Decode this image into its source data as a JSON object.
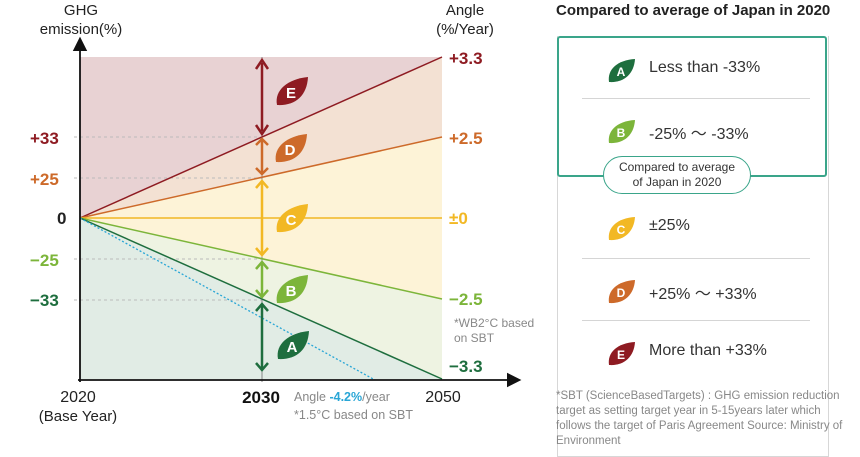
{
  "diagram": {
    "y_axis_title": [
      "GHG",
      "emission(%)"
    ],
    "right_axis_title": [
      "Angle",
      "(%/Year)"
    ],
    "left_ticks": [
      "+33",
      "+25",
      "0",
      "−25",
      "−33"
    ],
    "right_ticks": [
      "+3.3",
      "+2.5",
      "±0",
      "−2.5",
      "−3.3"
    ],
    "x_ticks": {
      "start": "2020",
      "start_sub": "(Base Year)",
      "mid": "2030",
      "end": "2050"
    },
    "zones": [
      "E",
      "D",
      "C",
      "B",
      "A"
    ],
    "wb2_note": [
      "*WB2°C based",
      "on SBT"
    ],
    "angle_note_prefix": "Angle ",
    "angle_note_value": "-4.2%",
    "angle_note_suffix": "/year",
    "sbt15_note": "*1.5°C based on SBT"
  },
  "legend": {
    "title": "Compared to average of Japan in 2020",
    "pill": [
      "Compared to average",
      "of Japan in 2020"
    ],
    "rows": [
      {
        "letter": "A",
        "color": "#1e6e3e",
        "text": "Less than -33%"
      },
      {
        "letter": "B",
        "color": "#7cb53a",
        "text": "-25% ～ -33%"
      },
      {
        "letter": "C",
        "color": "#f2b824",
        "text": "±25%"
      },
      {
        "letter": "D",
        "color": "#cd6a2a",
        "text": "+25% ～ +33%"
      },
      {
        "letter": "E",
        "color": "#8e1b22",
        "text": "More than +33%"
      }
    ]
  },
  "footnote": "*SBT (ScienceBasedTargets) : GHG emission reduction target as setting target year in 5-15years later which follows the target of Paris Agreement Source: Ministry of Environment"
}
